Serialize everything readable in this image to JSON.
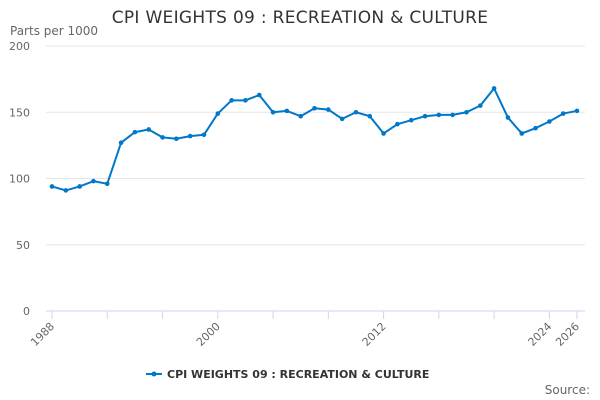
{
  "chart_data": {
    "type": "line",
    "title": "CPI WEIGHTS 09 : RECREATION & CULTURE",
    "ylabel": "Parts per 1000",
    "xlabel": "",
    "source_label": "Source:",
    "ylim": [
      0,
      200
    ],
    "yticks": [
      0,
      50,
      100,
      150,
      200
    ],
    "xticks": [
      1988,
      2000,
      2012,
      2024,
      2026
    ],
    "grid": true,
    "legend": "bottom-center",
    "color": "#0077c8",
    "series": [
      {
        "name": "CPI WEIGHTS 09 : RECREATION & CULTURE",
        "x": [
          1988,
          1989,
          1990,
          1991,
          1992,
          1993,
          1994,
          1995,
          1996,
          1997,
          1998,
          1999,
          2000,
          2001,
          2002,
          2003,
          2004,
          2005,
          2006,
          2007,
          2008,
          2009,
          2010,
          2011,
          2012,
          2013,
          2014,
          2015,
          2016,
          2017,
          2018,
          2019,
          2020,
          2021,
          2022,
          2023,
          2024,
          2025,
          2026
        ],
        "values": [
          94,
          91,
          94,
          98,
          96,
          127,
          135,
          137,
          131,
          130,
          132,
          133,
          149,
          159,
          159,
          163,
          150,
          151,
          147,
          153,
          152,
          145,
          150,
          147,
          134,
          141,
          144,
          147,
          148,
          148,
          150,
          155,
          168,
          146,
          134,
          138,
          143,
          149,
          151
        ]
      }
    ]
  }
}
